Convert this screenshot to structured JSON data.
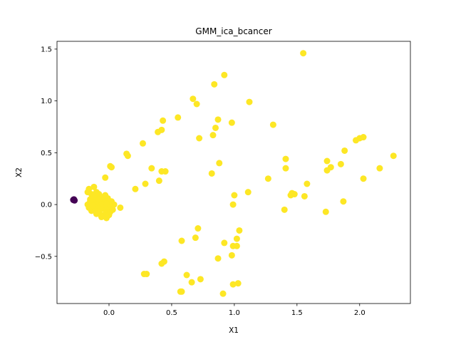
{
  "chart_data": {
    "type": "scatter",
    "title": "GMM_ica_bcancer",
    "xlabel": "X1",
    "ylabel": "X2",
    "xlim": [
      -0.415,
      2.405
    ],
    "ylim": [
      -0.955,
      1.575
    ],
    "xticks": [
      0.0,
      0.5,
      1.0,
      1.5,
      2.0
    ],
    "xtick_labels": [
      "0.0",
      "0.5",
      "1.0",
      "1.5",
      "2.0"
    ],
    "yticks": [
      -0.5,
      0.0,
      0.5,
      1.0,
      1.5
    ],
    "ytick_labels": [
      "−0.5",
      "0.0",
      "0.5",
      "1.0",
      "1.5"
    ],
    "grid": false,
    "legend": "none",
    "series": [
      {
        "cluster": 0,
        "color": "#440154",
        "points": [
          [
            -0.28,
            0.05
          ],
          [
            -0.285,
            0.045
          ],
          [
            -0.275,
            0.04
          ],
          [
            0.01,
            0.01
          ],
          [
            0.005,
            0.015
          ]
        ]
      },
      {
        "cluster": 1,
        "color": "#fde725",
        "points": [
          [
            1.55,
            1.46
          ],
          [
            0.92,
            1.25
          ],
          [
            0.84,
            1.16
          ],
          [
            0.67,
            1.02
          ],
          [
            0.7,
            0.97
          ],
          [
            1.12,
            0.99
          ],
          [
            0.43,
            0.81
          ],
          [
            0.55,
            0.84
          ],
          [
            0.87,
            0.82
          ],
          [
            0.98,
            0.79
          ],
          [
            1.31,
            0.77
          ],
          [
            0.85,
            0.74
          ],
          [
            0.39,
            0.7
          ],
          [
            0.42,
            0.72
          ],
          [
            0.83,
            0.67
          ],
          [
            0.72,
            0.64
          ],
          [
            2.03,
            0.65
          ],
          [
            1.97,
            0.62
          ],
          [
            2.0,
            0.64
          ],
          [
            0.27,
            0.59
          ],
          [
            1.88,
            0.52
          ],
          [
            2.27,
            0.47
          ],
          [
            0.14,
            0.49
          ],
          [
            0.15,
            0.47
          ],
          [
            1.41,
            0.44
          ],
          [
            1.74,
            0.42
          ],
          [
            1.85,
            0.39
          ],
          [
            1.77,
            0.36
          ],
          [
            0.01,
            0.37
          ],
          [
            0.02,
            0.36
          ],
          [
            0.88,
            0.4
          ],
          [
            0.34,
            0.35
          ],
          [
            1.41,
            0.35
          ],
          [
            2.16,
            0.35
          ],
          [
            0.42,
            0.32
          ],
          [
            0.45,
            0.32
          ],
          [
            1.74,
            0.33
          ],
          [
            0.82,
            0.3
          ],
          [
            -0.03,
            0.26
          ],
          [
            1.27,
            0.25
          ],
          [
            2.03,
            0.25
          ],
          [
            0.4,
            0.23
          ],
          [
            0.29,
            0.2
          ],
          [
            1.58,
            0.2
          ],
          [
            0.21,
            0.15
          ],
          [
            1.11,
            0.12
          ],
          [
            1.46,
            0.11
          ],
          [
            1.48,
            0.1
          ],
          [
            1.45,
            0.09
          ],
          [
            1.0,
            0.09
          ],
          [
            1.56,
            0.08
          ],
          [
            0.99,
            0.0
          ],
          [
            1.87,
            0.03
          ],
          [
            0.09,
            -0.03
          ],
          [
            1.4,
            -0.05
          ],
          [
            1.73,
            -0.07
          ],
          [
            0.71,
            -0.23
          ],
          [
            1.04,
            -0.25
          ],
          [
            0.69,
            -0.32
          ],
          [
            1.02,
            -0.33
          ],
          [
            0.58,
            -0.35
          ],
          [
            0.92,
            -0.37
          ],
          [
            0.99,
            -0.4
          ],
          [
            1.02,
            -0.4
          ],
          [
            0.98,
            -0.49
          ],
          [
            0.87,
            -0.52
          ],
          [
            0.44,
            -0.55
          ],
          [
            0.42,
            -0.57
          ],
          [
            0.28,
            -0.67
          ],
          [
            0.3,
            -0.67
          ],
          [
            0.62,
            -0.68
          ],
          [
            0.73,
            -0.72
          ],
          [
            0.66,
            -0.75
          ],
          [
            1.03,
            -0.76
          ],
          [
            0.99,
            -0.77
          ],
          [
            0.57,
            -0.84
          ],
          [
            0.58,
            -0.84
          ],
          [
            0.91,
            -0.86
          ],
          [
            -0.17,
            0.12
          ],
          [
            -0.16,
            0.15
          ],
          [
            -0.12,
            0.17
          ],
          [
            -0.14,
            0.1
          ],
          [
            -0.1,
            0.12
          ],
          [
            -0.08,
            0.1
          ],
          [
            -0.11,
            0.06
          ],
          [
            -0.15,
            0.05
          ],
          [
            -0.06,
            0.07
          ],
          [
            -0.04,
            0.05
          ],
          [
            -0.09,
            0.03
          ],
          [
            -0.13,
            0.02
          ],
          [
            -0.17,
            0.0
          ],
          [
            -0.12,
            -0.02
          ],
          [
            -0.16,
            -0.03
          ],
          [
            -0.07,
            -0.01
          ],
          [
            -0.03,
            0.02
          ],
          [
            -0.1,
            -0.05
          ],
          [
            -0.05,
            -0.04
          ],
          [
            -0.14,
            -0.06
          ],
          [
            -0.08,
            -0.08
          ],
          [
            -0.02,
            -0.06
          ],
          [
            -0.04,
            -0.1
          ],
          [
            -0.06,
            -0.12
          ],
          [
            -0.02,
            -0.13
          ],
          [
            0.0,
            -0.1
          ],
          [
            0.01,
            -0.07
          ],
          [
            0.02,
            -0.03
          ],
          [
            0.04,
            0.0
          ],
          [
            0.02,
            0.03
          ],
          [
            -0.01,
            0.06
          ],
          [
            -0.03,
            0.09
          ],
          [
            -0.12,
            0.08
          ],
          [
            -0.09,
            0.0
          ],
          [
            -0.06,
            0.02
          ],
          [
            -0.11,
            -0.03
          ],
          [
            -0.07,
            -0.05
          ],
          [
            -0.01,
            -0.02
          ],
          [
            -0.15,
            0.03
          ],
          [
            -0.05,
            0.0
          ],
          [
            0.0,
            0.0
          ],
          [
            0.03,
            -0.05
          ],
          [
            -0.02,
            0.01
          ],
          [
            -0.08,
            0.05
          ],
          [
            -0.13,
            -0.01
          ],
          [
            -0.1,
            -0.09
          ]
        ]
      }
    ]
  }
}
